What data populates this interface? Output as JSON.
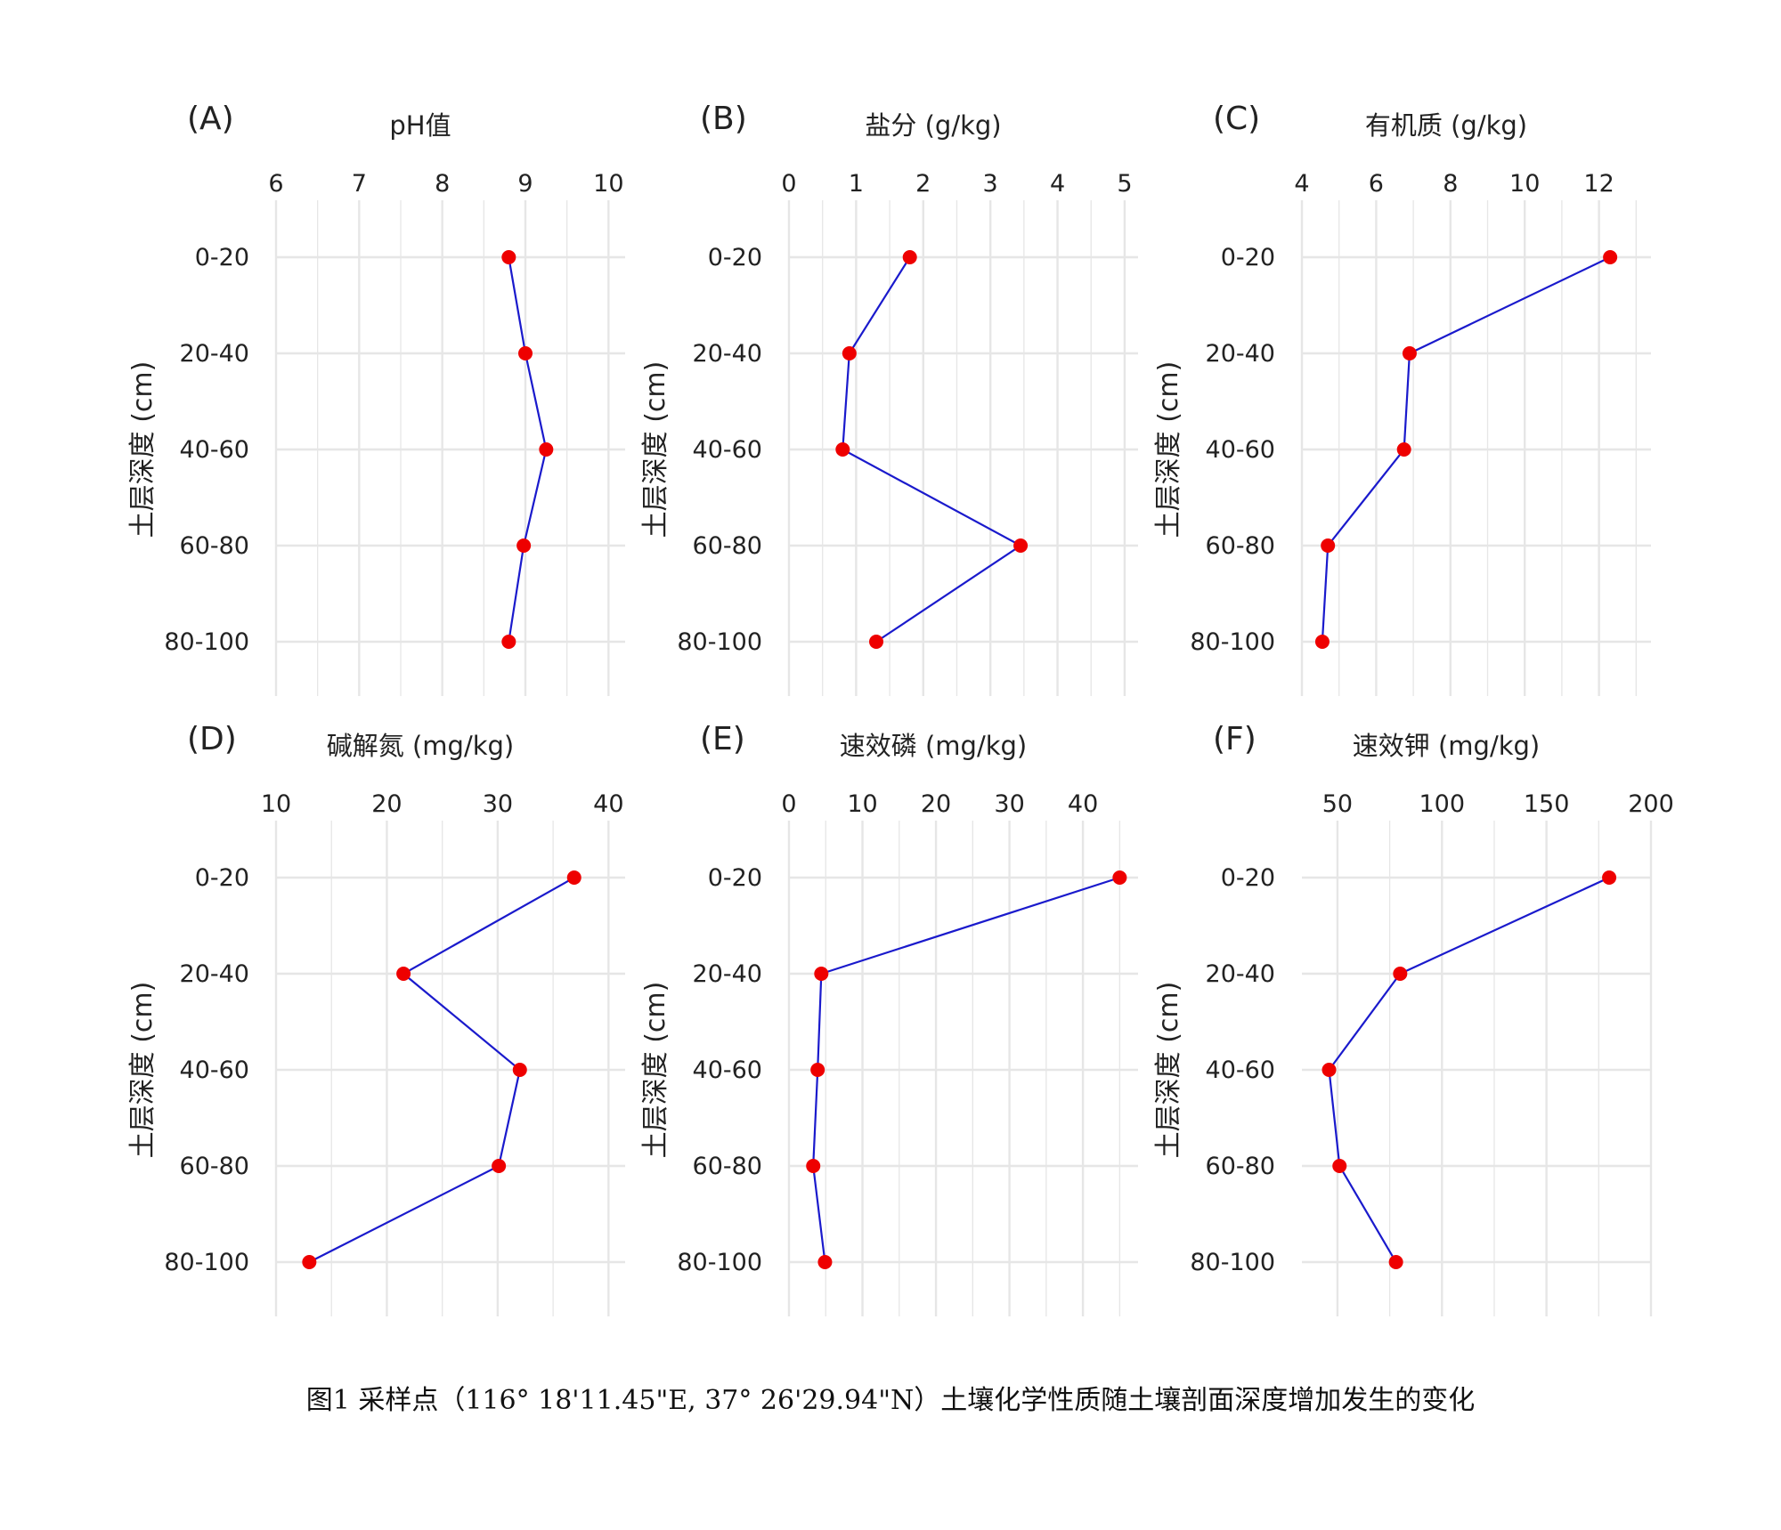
{
  "caption": "图1 采样点（116° 18'11.45\"E, 37° 26'29.94\"N）土壤化学性质随土壤剖面深度增加发生的变化",
  "colors": {
    "line": "#1a1acc",
    "point": "#ee0000",
    "grid": "#e6e6e6",
    "text": "#222222"
  },
  "chart_data": [
    {
      "type": "line",
      "panel": "(A)",
      "title": "pH值",
      "ylabel": "土层深度 (cm)",
      "categories": [
        "0-20",
        "20-40",
        "40-60",
        "60-80",
        "80-100"
      ],
      "values": [
        8.8,
        9.0,
        9.25,
        8.98,
        8.8
      ],
      "xlim": [
        6,
        10.2
      ],
      "xticks": [
        6,
        7,
        8,
        9,
        10
      ]
    },
    {
      "type": "line",
      "panel": "(B)",
      "title": "盐分 (g/kg)",
      "ylabel": "土层深度 (cm)",
      "categories": [
        "0-20",
        "20-40",
        "40-60",
        "60-80",
        "80-100"
      ],
      "values": [
        1.8,
        0.9,
        0.8,
        3.45,
        1.3
      ],
      "xlim": [
        0,
        5.2
      ],
      "xticks": [
        0,
        1,
        2,
        3,
        4,
        5
      ]
    },
    {
      "type": "line",
      "panel": "(C)",
      "title": "有机质 (g/kg)",
      "ylabel": "土层深度 (cm)",
      "categories": [
        "0-20",
        "20-40",
        "40-60",
        "60-80",
        "80-100"
      ],
      "values": [
        12.3,
        6.9,
        6.75,
        4.7,
        4.55
      ],
      "xlim": [
        4,
        13.4
      ],
      "xticks": [
        4,
        6,
        8,
        10,
        12
      ]
    },
    {
      "type": "line",
      "panel": "(D)",
      "title": "碱解氮 (mg/kg)",
      "ylabel": "土层深度 (cm)",
      "categories": [
        "0-20",
        "20-40",
        "40-60",
        "60-80",
        "80-100"
      ],
      "values": [
        36.9,
        21.5,
        32.0,
        30.1,
        13.0
      ],
      "xlim": [
        10,
        41.5
      ],
      "xticks": [
        10,
        20,
        30,
        40
      ]
    },
    {
      "type": "line",
      "panel": "(E)",
      "title": "速效磷 (mg/kg)",
      "ylabel": "土层深度 (cm)",
      "categories": [
        "0-20",
        "20-40",
        "40-60",
        "60-80",
        "80-100"
      ],
      "values": [
        45.0,
        4.4,
        3.9,
        3.3,
        4.9
      ],
      "xlim": [
        0,
        47.5
      ],
      "xticks": [
        0,
        10,
        20,
        30,
        40
      ]
    },
    {
      "type": "line",
      "panel": "(F)",
      "title": "速效钾 (mg/kg)",
      "ylabel": "土层深度 (cm)",
      "categories": [
        "0-20",
        "20-40",
        "40-60",
        "60-80",
        "80-100"
      ],
      "values": [
        180,
        80,
        46,
        51,
        78
      ],
      "xlim": [
        33,
        200
      ],
      "xticks": [
        50,
        100,
        150,
        200
      ]
    }
  ]
}
